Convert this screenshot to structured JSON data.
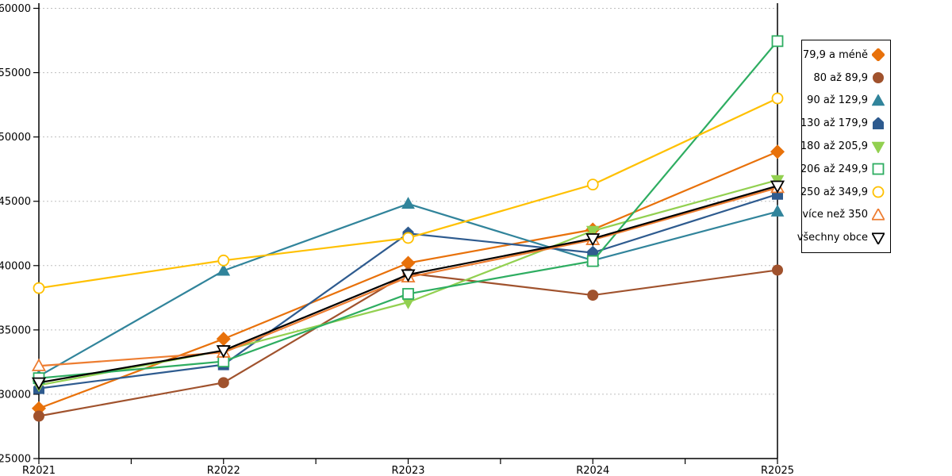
{
  "chart_data": {
    "type": "line",
    "title": "",
    "xlabel": "",
    "ylabel": "",
    "categories": [
      "R2021",
      "R2022",
      "R2023",
      "R2024",
      "R2025"
    ],
    "series": [
      {
        "name": "79,9 a méně",
        "marker": "diamond",
        "fill": "filled",
        "color": "#E8710A",
        "values": [
          28900,
          34300,
          40200,
          42800,
          48850
        ]
      },
      {
        "name": "80 až 89,9",
        "marker": "circle",
        "fill": "filled",
        "color": "#A0522D",
        "values": [
          28300,
          30900,
          39400,
          37700,
          39650
        ]
      },
      {
        "name": "90 až 129,9",
        "marker": "triangle-up",
        "fill": "filled",
        "color": "#31849B",
        "values": [
          31400,
          39600,
          44800,
          40400,
          44200
        ]
      },
      {
        "name": "130 až 179,9",
        "marker": "pentagon",
        "fill": "filled",
        "color": "#2E5B8F",
        "values": [
          30450,
          32300,
          42500,
          41000,
          45550
        ]
      },
      {
        "name": "180 až 205,9",
        "marker": "triangle-down",
        "fill": "filled",
        "color": "#92D050",
        "values": [
          30700,
          33400,
          37150,
          42700,
          46650
        ]
      },
      {
        "name": "206 až 249,9",
        "marker": "square",
        "fill": "open",
        "color": "#2EAD61",
        "values": [
          31250,
          32550,
          37800,
          40350,
          57450
        ]
      },
      {
        "name": "250 až 349,9",
        "marker": "circle",
        "fill": "open",
        "color": "#FFC000",
        "values": [
          38250,
          40400,
          42150,
          46300,
          53000
        ]
      },
      {
        "name": "více než 350",
        "marker": "triangle-up",
        "fill": "open",
        "color": "#ED7D31",
        "values": [
          32200,
          33250,
          39100,
          42000,
          46050
        ]
      },
      {
        "name": "všechny obce",
        "marker": "triangle-down",
        "fill": "open",
        "color": "#000000",
        "values": [
          30900,
          33400,
          39300,
          42100,
          46200
        ]
      }
    ],
    "ylim": [
      25000,
      60000
    ],
    "ytick_step": 5000,
    "yticks": [
      "25000",
      "30000",
      "35000",
      "40000",
      "45000",
      "50000",
      "55000",
      "60000"
    ],
    "grid": "horizontal-dashed",
    "legend_position": "right",
    "colors": {
      "background": "#ffffff",
      "axis": "#000000",
      "grid": "#bfbfbf",
      "text": "#000000"
    }
  }
}
